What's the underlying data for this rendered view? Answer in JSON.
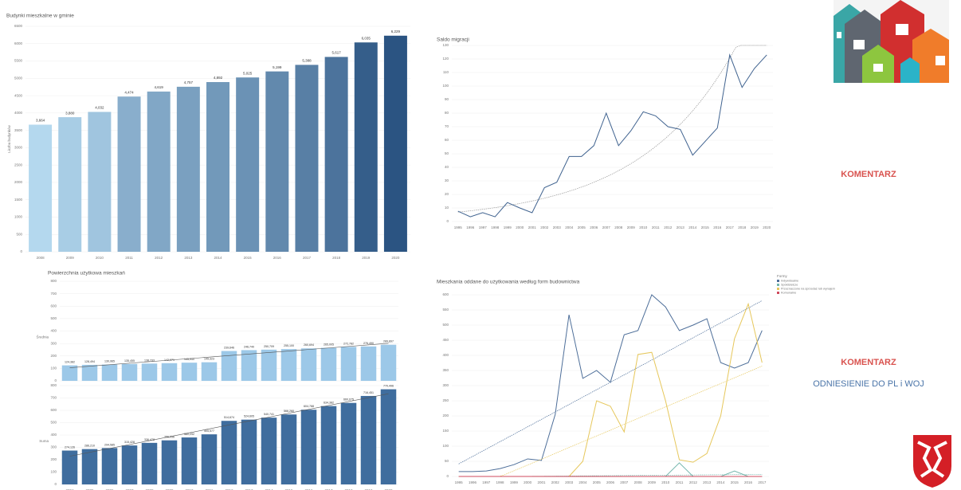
{
  "chart_data": [
    {
      "type": "bar",
      "title": "Budynki mieszkalne w gminie",
      "y_label": "Liczba budynków",
      "categories": [
        "2008",
        "2009",
        "2010",
        "2011",
        "2012",
        "2013",
        "2014",
        "2015",
        "2016",
        "2017",
        "2018",
        "2019",
        "2020"
      ],
      "values": [
        3664,
        3880,
        4032,
        4474,
        4619,
        4757,
        4892,
        5025,
        5199,
        5388,
        5617,
        6035,
        6229
      ],
      "value_labels": [
        "3,664",
        "3,880",
        "4,032",
        "4,474",
        "4,619",
        "4,757",
        "4,892",
        "5,025",
        "5,199",
        "5,388",
        "5,617",
        "6,035",
        "6,229"
      ],
      "color_range": [
        "#b4d8ee",
        "#2b5482"
      ],
      "ylim": [
        0,
        6500
      ],
      "yticks": [
        0,
        500,
        1000,
        1500,
        2000,
        2500,
        3000,
        3500,
        4000,
        4500,
        5000,
        5500,
        6000,
        6500
      ],
      "grid": true
    },
    {
      "type": "line",
      "title": "Saldo migracji",
      "categories": [
        "1995",
        "1996",
        "1997",
        "1998",
        "1999",
        "2000",
        "2001",
        "2002",
        "2003",
        "2004",
        "2005",
        "2006",
        "2007",
        "2008",
        "2009",
        "2010",
        "2011",
        "2012",
        "2013",
        "2014",
        "2015",
        "2016",
        "2017",
        "2018",
        "2019",
        "2020"
      ],
      "values": [
        7.6,
        3.5,
        6.5,
        3.5,
        14,
        10,
        6.5,
        25,
        29,
        48,
        48,
        56,
        80,
        56,
        67,
        81,
        78,
        70,
        68,
        49,
        59,
        69,
        123,
        99,
        113,
        123
      ],
      "color": "#3f628f",
      "trendline": "exponential",
      "ylim": [
        0,
        130
      ],
      "yticks": [
        0,
        10,
        20,
        30,
        40,
        50,
        60,
        70,
        80,
        90,
        100,
        110,
        120,
        130
      ],
      "grid": true
    },
    {
      "type": "bar_panels",
      "title": "Powierzchnia użytkowa mieszkań",
      "categories": [
        "2004",
        "2005",
        "2006",
        "2007",
        "2008",
        "2009",
        "2010",
        "2011",
        "2012",
        "2013",
        "2014",
        "2015",
        "2016",
        "2017",
        "2018",
        "2019",
        "2020"
      ],
      "series": [
        {
          "name": "Średnia",
          "color": "#9cc8e8",
          "values": [
            124.382,
            128.494,
            130.965,
            135.455,
            138.733,
            142.071,
            145.94,
            149.323,
            239.646,
            246.74,
            250.709,
            255.1,
            260.694,
            265.005,
            272.782,
            276.49,
            289.897
          ],
          "value_labels": [
            "124,382",
            "128,494",
            "130,965",
            "135,455",
            "138,733",
            "142,071",
            "145,940",
            "149,323",
            "239,646",
            "246,740",
            "250,709",
            "255,100",
            "260,694",
            "265,005",
            "272,782",
            "276,490",
            "289,897"
          ]
        },
        {
          "name": "Suma",
          "color": "#3f6d9e",
          "values": [
            274.126,
            286.21,
            294.585,
            315.428,
            336.478,
            356.956,
            380.292,
            405.577,
            514.674,
            524.605,
            540.741,
            566.26,
            604.788,
            634.382,
            660.075,
            716.451,
            770.496
          ],
          "value_labels": [
            "274,126",
            "286,210",
            "294,585",
            "315,428",
            "336,478",
            "356,956",
            "380,292",
            "405,577",
            "514,674",
            "524,605",
            "540,741",
            "566,260",
            "604,788",
            "634,382",
            "660,075",
            "716,451",
            "770,496"
          ]
        }
      ],
      "trendline": "linear",
      "ylim": [
        0,
        800
      ],
      "yticks": [
        0,
        100,
        200,
        300,
        400,
        500,
        600,
        700,
        800
      ],
      "grid": true
    },
    {
      "type": "line",
      "title": "Mieszkania oddane do użytkowania według form budownictwa",
      "legend_title": "Formy",
      "categories": [
        "1995",
        "1996",
        "1997",
        "1998",
        "1999",
        "2000",
        "2001",
        "2002",
        "2003",
        "2004",
        "2005",
        "2006",
        "2007",
        "2008",
        "2009",
        "2010",
        "2011",
        "2012",
        "2013",
        "2014",
        "2015",
        "2016",
        "2017"
      ],
      "series": [
        {
          "name": "Indywidualne",
          "color": "#4d6e99",
          "values": [
            16,
            16,
            18,
            26,
            39,
            58,
            53,
            205,
            534,
            324,
            350,
            311,
            468,
            482,
            600,
            560,
            482,
            500,
            521,
            376,
            358,
            376,
            482
          ]
        },
        {
          "name": "Spółdzielcze",
          "color": "#74b6ad",
          "values": [
            0,
            0,
            0,
            0,
            0,
            0,
            0,
            0,
            0,
            0,
            0,
            0,
            0,
            0,
            0,
            0,
            45,
            0,
            0,
            0,
            18,
            0,
            0
          ]
        },
        {
          "name": "Przeznaczone na sprzedaż lub wynajem",
          "color": "#e6c75b",
          "values": [
            0,
            0,
            0,
            0,
            0,
            0,
            0,
            0,
            0,
            50,
            250,
            232,
            147,
            403,
            410,
            250,
            55,
            47,
            76,
            200,
            455,
            570,
            376
          ]
        },
        {
          "name": "Komunalne",
          "color": "#cf4a5c",
          "values": [
            0,
            0,
            0,
            0,
            0,
            0,
            0,
            0,
            0,
            0,
            0,
            0,
            0,
            0,
            0,
            0,
            0,
            0,
            0,
            0,
            0,
            0,
            0
          ]
        }
      ],
      "trendline": "linear",
      "legend": "top-right",
      "ylim": [
        0,
        600
      ],
      "yticks": [
        0,
        50,
        100,
        150,
        200,
        250,
        300,
        350,
        400,
        450,
        500,
        550,
        600
      ],
      "grid": true
    }
  ],
  "comments": [
    "KOMENTARZ",
    "KOMENTARZ",
    "ODNIESIENIE DO PL i WOJ"
  ]
}
